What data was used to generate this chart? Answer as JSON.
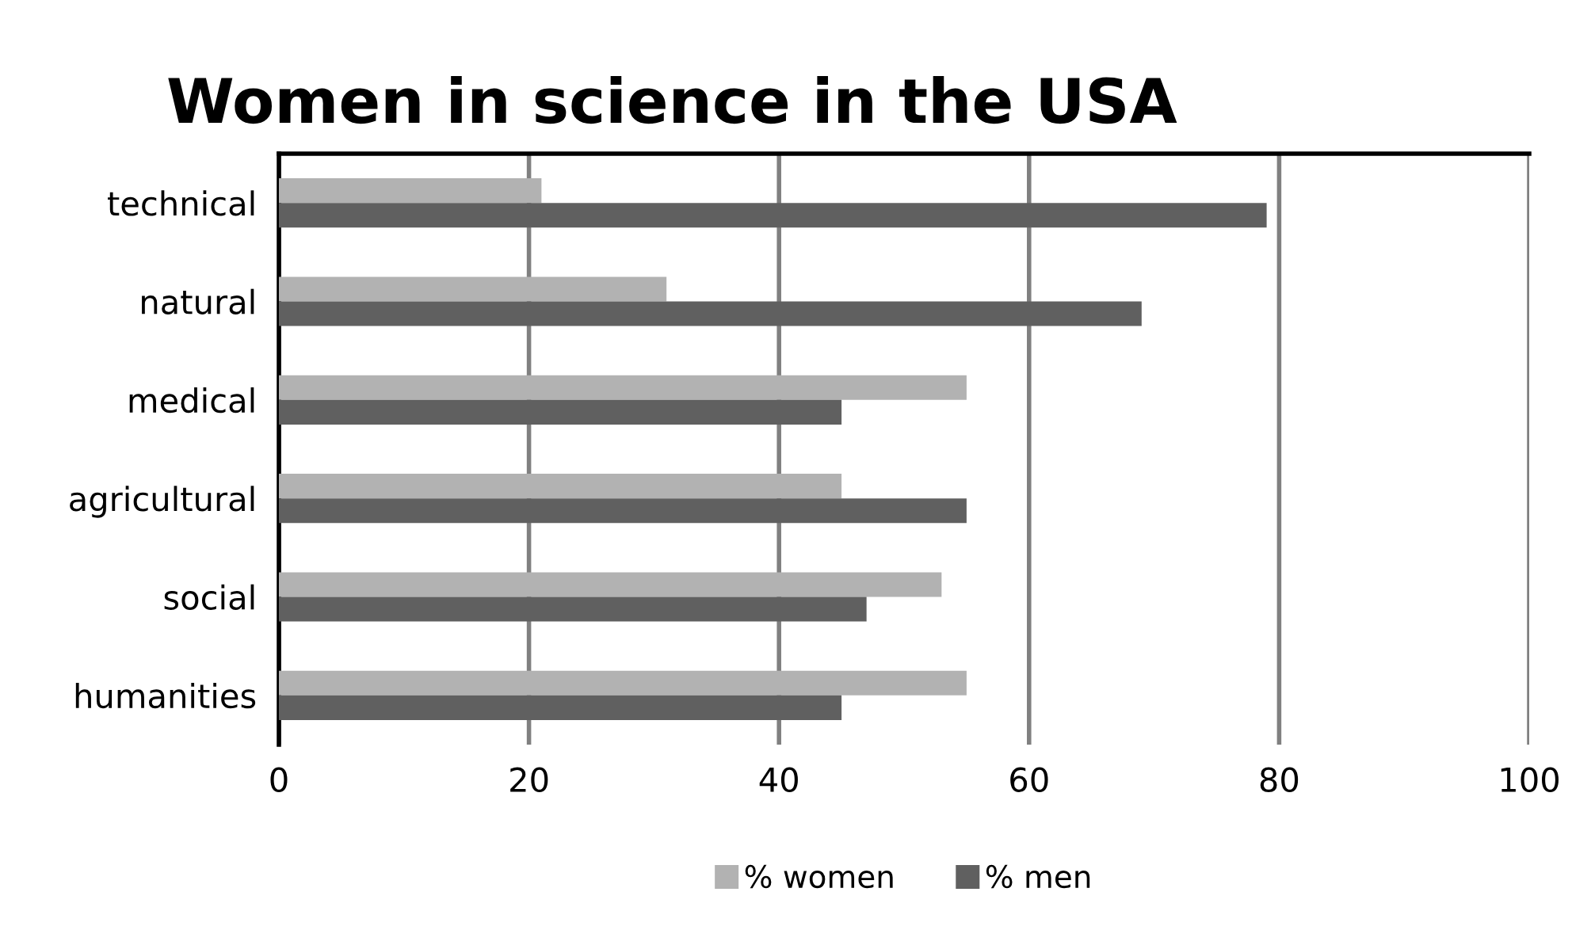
{
  "chart_data": {
    "type": "bar",
    "orientation": "horizontal",
    "title": "Women in science in the USA",
    "categories": [
      "technical",
      "natural",
      "medical",
      "agricultural",
      "social",
      "humanities"
    ],
    "series": [
      {
        "name": "% women",
        "color": "#b2b2b2",
        "values": [
          21,
          31,
          55,
          45,
          53,
          55
        ]
      },
      {
        "name": "% men",
        "color": "#606060",
        "values": [
          79,
          69,
          45,
          55,
          47,
          45
        ]
      }
    ],
    "xlim": [
      0,
      100
    ],
    "xticks": [
      0,
      20,
      40,
      60,
      80,
      100
    ],
    "grid": "x",
    "legend": "bottom"
  }
}
